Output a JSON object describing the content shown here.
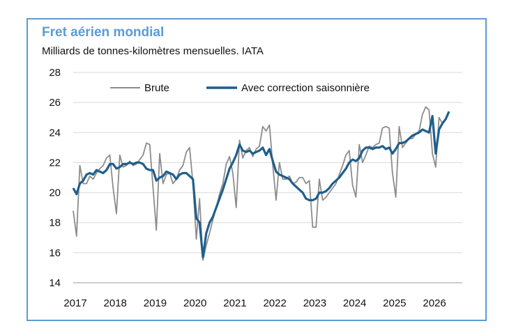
{
  "chart_data": {
    "type": "line",
    "title": "Fret aérien mondial",
    "subtitle": "Milliards de tonnes-kilomètres mensuelles. IATA",
    "xlabel": "",
    "ylabel": "",
    "ylim": [
      14,
      28
    ],
    "yticks": [
      "14",
      "16",
      "18",
      "20",
      "22",
      "24",
      "26",
      "28"
    ],
    "xticks": [
      "2017",
      "2018",
      "2019",
      "2020",
      "2021",
      "2022",
      "2023",
      "2024",
      "2025",
      "2026"
    ],
    "xlim": [
      2017.0,
      2026.75
    ],
    "grid": true,
    "legend_position": "top",
    "start": 2017.0,
    "step": 0.0833333,
    "series": [
      {
        "name": "Brute",
        "color": "#8c8c8c",
        "values": [
          18.8,
          17.1,
          21.8,
          20.6,
          20.6,
          21.1,
          20.9,
          21.3,
          21.6,
          21.8,
          22.3,
          22.5,
          20.3,
          18.6,
          22.5,
          21.7,
          21.8,
          22.1,
          21.8,
          21.9,
          22.2,
          22.5,
          23.3,
          23.2,
          20.3,
          17.5,
          22.6,
          20.6,
          21.2,
          21.3,
          20.6,
          20.9,
          21.5,
          21.8,
          22.7,
          23.0,
          20.6,
          16.9,
          19.6,
          15.5,
          16.5,
          17.3,
          18.2,
          19.0,
          19.9,
          20.6,
          21.9,
          22.4,
          21.3,
          19.0,
          23.5,
          22.3,
          22.8,
          23.0,
          22.4,
          22.9,
          23.1,
          24.4,
          24.1,
          24.5,
          21.8,
          19.5,
          22.0,
          20.9,
          20.9,
          21.1,
          20.6,
          20.7,
          21.0,
          21.0,
          20.6,
          20.8,
          17.7,
          17.7,
          20.9,
          19.5,
          19.7,
          20.0,
          20.3,
          20.6,
          21.2,
          21.8,
          22.5,
          22.8,
          20.5,
          19.7,
          23.2,
          22.0,
          22.5,
          23.1,
          23.0,
          23.2,
          23.3,
          24.3,
          24.4,
          24.3,
          21.3,
          19.7,
          24.4,
          23.0,
          23.3,
          23.6,
          23.6,
          23.9,
          24.1,
          25.2,
          25.7,
          25.5,
          22.6,
          21.7,
          25.0,
          24.6,
          24.9,
          25.4
        ]
      },
      {
        "name": "Avec correction saisonnière",
        "color": "#1f5f8b",
        "values": [
          20.3,
          19.9,
          20.6,
          20.8,
          21.2,
          21.3,
          21.2,
          21.5,
          21.4,
          21.3,
          21.5,
          21.9,
          21.9,
          21.6,
          21.7,
          21.9,
          21.9,
          22.0,
          21.9,
          22.0,
          22.0,
          21.9,
          21.6,
          21.5,
          21.5,
          20.8,
          21.0,
          21.1,
          21.4,
          21.3,
          21.2,
          20.9,
          21.2,
          21.3,
          21.3,
          21.1,
          20.9,
          18.3,
          18.0,
          15.7,
          17.3,
          18.0,
          18.4,
          19.0,
          19.6,
          20.2,
          20.9,
          21.6,
          22.0,
          22.5,
          23.2,
          22.8,
          22.7,
          22.8,
          22.6,
          22.7,
          22.8,
          23.0,
          22.5,
          22.9,
          22.1,
          21.4,
          21.2,
          21.1,
          21.0,
          20.9,
          20.6,
          20.4,
          20.2,
          20.0,
          19.6,
          19.5,
          19.5,
          19.6,
          20.0,
          20.0,
          20.1,
          20.3,
          20.6,
          20.8,
          21.0,
          21.3,
          21.6,
          22.0,
          22.2,
          22.1,
          22.3,
          22.8,
          23.0,
          23.0,
          22.9,
          23.0,
          23.0,
          23.1,
          22.9,
          23.0,
          22.6,
          22.9,
          23.3,
          23.3,
          23.4,
          23.6,
          23.8,
          23.9,
          24.0,
          24.2,
          24.1,
          24.0,
          25.1,
          22.6,
          24.2,
          24.6,
          24.9,
          25.4
        ]
      }
    ]
  }
}
